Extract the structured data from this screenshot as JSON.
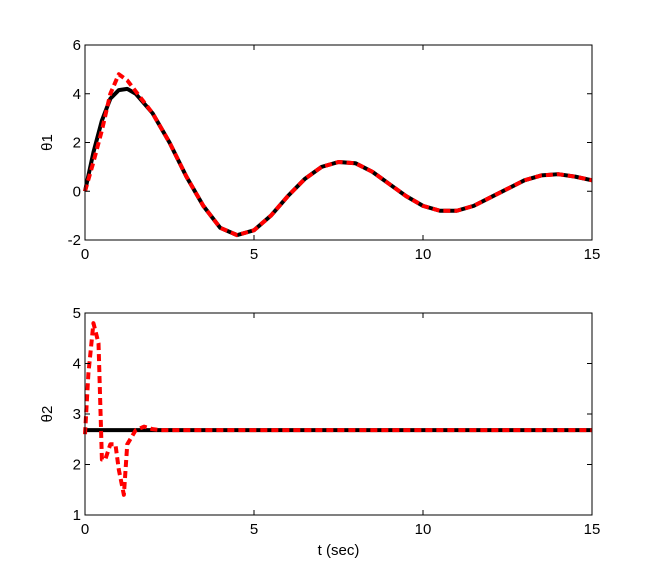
{
  "chart_data": [
    {
      "type": "line",
      "ylabel": "θ1",
      "x": [
        0,
        0.25,
        0.5,
        0.75,
        1,
        1.25,
        1.5,
        2,
        2.5,
        3,
        3.5,
        4,
        4.5,
        5,
        5.5,
        6,
        6.5,
        7,
        7.5,
        8,
        8.5,
        9,
        9.5,
        10,
        10.5,
        11,
        11.5,
        12,
        12.5,
        13,
        13.5,
        14,
        14.5,
        15
      ],
      "series": [
        {
          "color": "#000000",
          "style": "solid",
          "values": [
            0,
            1.6,
            2.9,
            3.8,
            4.15,
            4.2,
            4.0,
            3.2,
            2.0,
            0.6,
            -0.6,
            -1.5,
            -1.8,
            -1.6,
            -1.0,
            -0.2,
            0.5,
            1.0,
            1.2,
            1.15,
            0.8,
            0.3,
            -0.2,
            -0.6,
            -0.8,
            -0.8,
            -0.6,
            -0.25,
            0.1,
            0.45,
            0.65,
            0.7,
            0.6,
            0.45
          ]
        },
        {
          "color": "#ff0000",
          "style": "dashed",
          "values": [
            0,
            1.2,
            2.5,
            4.0,
            4.8,
            4.55,
            4.1,
            3.2,
            2.0,
            0.6,
            -0.6,
            -1.5,
            -1.8,
            -1.6,
            -1.0,
            -0.2,
            0.5,
            1.0,
            1.2,
            1.15,
            0.8,
            0.3,
            -0.2,
            -0.6,
            -0.8,
            -0.8,
            -0.6,
            -0.25,
            0.1,
            0.45,
            0.65,
            0.7,
            0.6,
            0.45
          ]
        }
      ],
      "xlim": [
        0,
        15
      ],
      "xticks": [
        0,
        5,
        10,
        15
      ],
      "ylim": [
        -2,
        6
      ],
      "yticks": [
        -2,
        0,
        2,
        4,
        6
      ],
      "grid": false
    },
    {
      "type": "line",
      "ylabel": "θ2",
      "xlabel": "t (sec)",
      "x": [
        0,
        0.1,
        0.25,
        0.4,
        0.5,
        0.6,
        0.75,
        0.9,
        1,
        1.15,
        1.25,
        1.5,
        1.75,
        2,
        2.25,
        15
      ],
      "series": [
        {
          "color": "#000000",
          "style": "solid",
          "values": [
            2.68,
            2.68,
            2.68,
            2.68,
            2.68,
            2.68,
            2.68,
            2.68,
            2.68,
            2.68,
            2.68,
            2.68,
            2.68,
            2.68,
            2.68,
            2.68
          ]
        },
        {
          "color": "#ff0000",
          "style": "dashed",
          "values": [
            2.6,
            3.8,
            4.8,
            4.4,
            2.1,
            2.1,
            2.4,
            2.4,
            1.9,
            1.4,
            2.4,
            2.68,
            2.75,
            2.7,
            2.68,
            2.68
          ]
        }
      ],
      "xlim": [
        0,
        15
      ],
      "xticks": [
        0,
        5,
        10,
        15
      ],
      "ylim": [
        1,
        5
      ],
      "yticks": [
        1,
        2,
        3,
        4,
        5
      ],
      "grid": false
    }
  ]
}
